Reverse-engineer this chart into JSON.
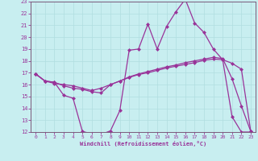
{
  "xlabel": "Windchill (Refroidissement éolien,°C)",
  "background_color": "#c8eef0",
  "grid_color": "#b0dde0",
  "line_color": "#993399",
  "spine_color": "#7a5a7a",
  "xlim": [
    -0.5,
    23.5
  ],
  "ylim": [
    12,
    23
  ],
  "xticks": [
    0,
    1,
    2,
    3,
    4,
    5,
    6,
    7,
    8,
    9,
    10,
    11,
    12,
    13,
    14,
    15,
    16,
    17,
    18,
    19,
    20,
    21,
    22,
    23
  ],
  "yticks": [
    12,
    13,
    14,
    15,
    16,
    17,
    18,
    19,
    20,
    21,
    22,
    23
  ],
  "line1_x": [
    0,
    1,
    2,
    3,
    4,
    5,
    6,
    7,
    8,
    9,
    10,
    11,
    12,
    13,
    14,
    15,
    16,
    17,
    18,
    19,
    20,
    21,
    22,
    23
  ],
  "line1_y": [
    16.9,
    16.3,
    16.2,
    15.1,
    14.85,
    12.05,
    11.85,
    11.8,
    12.1,
    13.8,
    18.9,
    19.0,
    21.1,
    19.0,
    20.9,
    22.15,
    23.2,
    21.2,
    20.4,
    19.0,
    18.1,
    13.3,
    12.0,
    12.0
  ],
  "line2_x": [
    0,
    1,
    2,
    3,
    4,
    5,
    6,
    7,
    8,
    9,
    10,
    11,
    12,
    13,
    14,
    15,
    16,
    17,
    18,
    19,
    20,
    21,
    22,
    23
  ],
  "line2_y": [
    16.9,
    16.3,
    16.2,
    15.9,
    15.7,
    15.6,
    15.4,
    15.3,
    16.0,
    16.3,
    16.6,
    16.85,
    17.0,
    17.2,
    17.4,
    17.55,
    17.7,
    17.85,
    18.05,
    18.15,
    18.1,
    17.8,
    17.3,
    12.05
  ],
  "line3_x": [
    0,
    1,
    2,
    3,
    4,
    5,
    6,
    7,
    8,
    9,
    10,
    11,
    12,
    13,
    14,
    15,
    16,
    17,
    18,
    19,
    20,
    21,
    22,
    23
  ],
  "line3_y": [
    16.9,
    16.3,
    16.1,
    16.0,
    15.9,
    15.7,
    15.5,
    15.7,
    16.0,
    16.3,
    16.65,
    16.9,
    17.1,
    17.3,
    17.5,
    17.65,
    17.85,
    18.0,
    18.15,
    18.3,
    18.2,
    16.5,
    14.2,
    12.05
  ]
}
